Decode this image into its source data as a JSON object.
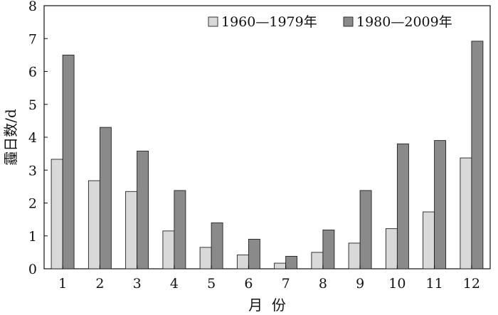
{
  "chart_data": {
    "type": "bar",
    "title": "",
    "xlabel": "月  份",
    "ylabel": "霾日数/d",
    "categories": [
      "1",
      "2",
      "3",
      "4",
      "5",
      "6",
      "7",
      "8",
      "9",
      "10",
      "11",
      "12"
    ],
    "series": [
      {
        "name": "1960—1979年",
        "color": "#d9d9d9",
        "values": [
          3.33,
          2.68,
          2.35,
          1.15,
          0.65,
          0.42,
          0.17,
          0.5,
          0.78,
          1.22,
          1.73,
          3.37
        ]
      },
      {
        "name": "1980—2009年",
        "color": "#8a8a8a",
        "values": [
          6.5,
          4.3,
          3.58,
          2.38,
          1.4,
          0.9,
          0.38,
          1.18,
          2.38,
          3.8,
          3.9,
          6.92
        ]
      }
    ],
    "ylim": [
      0,
      8
    ],
    "yticks": [
      "0",
      "1",
      "2",
      "3",
      "4",
      "5",
      "6",
      "7",
      "8"
    ],
    "grid": false,
    "legend": "top-right"
  }
}
